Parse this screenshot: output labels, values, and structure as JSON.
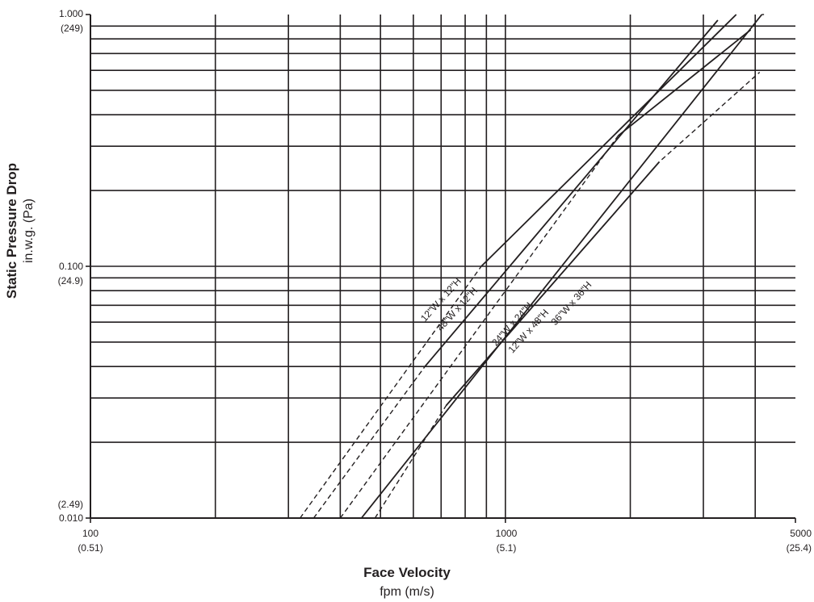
{
  "chart_data": {
    "type": "line",
    "title": "",
    "xlabel": "Face Velocity",
    "xlabel_units": "fpm (m/s)",
    "ylabel": "Static Pressure Drop",
    "ylabel_units": "in.w.g. (Pa)",
    "x_scale": "log",
    "y_scale": "log",
    "xlim": [
      100,
      5000
    ],
    "ylim": [
      0.01,
      1.0
    ],
    "grid": true,
    "x_ticks": [
      {
        "value": 100,
        "label": "100",
        "sublabel": "(0.51)"
      },
      {
        "value": 1000,
        "label": "1000",
        "sublabel": "(5.1)"
      },
      {
        "value": 5000,
        "label": "5000",
        "sublabel": "(25.4)"
      }
    ],
    "y_ticks": [
      {
        "value": 1.0,
        "label": "1.000",
        "sublabel": "(249)"
      },
      {
        "value": 0.1,
        "label": "0.100",
        "sublabel": "(24.9)"
      },
      {
        "value": 0.01,
        "label": "0.010",
        "sublabel": "(2.49)"
      }
    ],
    "series": [
      {
        "name": "12\"W x 12\"H",
        "solid": [
          [
            875,
            0.1
          ],
          [
            3600,
            1.0
          ]
        ],
        "dashed": [
          [
            320,
            0.01
          ],
          [
            875,
            0.1
          ]
        ]
      },
      {
        "name": "48\"W x 12\"H",
        "solid": [
          [
            640,
            0.04
          ],
          [
            3250,
            0.95
          ]
        ],
        "dashed": [
          [
            345,
            0.01
          ],
          [
            640,
            0.04
          ]
        ]
      },
      {
        "name": "24\"W x 24\"H",
        "solid": [
          [
            450,
            0.01
          ],
          [
            4150,
            1.0
          ]
        ],
        "dashed": [
          [
            4150,
            1.0
          ],
          [
            4200,
            1.0
          ]
        ]
      },
      {
        "name": "12\"W x 48\"H",
        "solid": [
          [
            1870,
            0.33
          ],
          [
            3900,
            0.87
          ]
        ],
        "dashed": [
          [
            400,
            0.01
          ],
          [
            1870,
            0.33
          ]
        ]
      },
      {
        "name": "36\"W x 36\"H",
        "solid": [
          [
            720,
            0.028
          ],
          [
            2350,
            0.26
          ]
        ],
        "dashed": [
          [
            485,
            0.01
          ],
          [
            720,
            0.028
          ],
          [
            2350,
            0.26
          ],
          [
            4100,
            0.59
          ]
        ]
      }
    ]
  }
}
